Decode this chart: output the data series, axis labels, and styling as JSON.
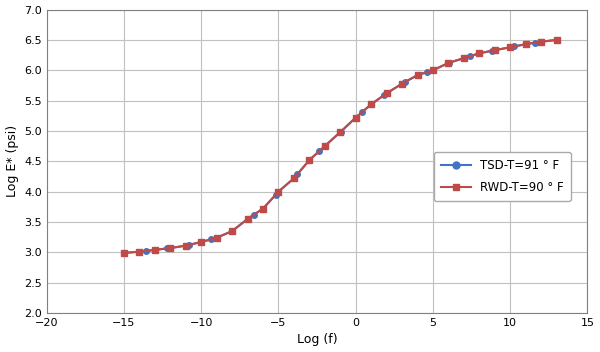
{
  "title": "",
  "xlabel": "Log (f)",
  "ylabel": "Log E* (psi)",
  "xlim": [
    -20,
    15
  ],
  "ylim": [
    2,
    7
  ],
  "xticks": [
    -20,
    -15,
    -10,
    -5,
    0,
    5,
    10,
    15
  ],
  "yticks": [
    2,
    2.5,
    3,
    3.5,
    4,
    4.5,
    5,
    5.5,
    6,
    6.5,
    7
  ],
  "tsd_color": "#4472C4",
  "rwd_color": "#BE4B48",
  "background_color": "#FFFFFF",
  "plot_bg_color": "#FFFFFF",
  "grid_color": "#C0C0C0",
  "legend_tsd": "TSD-T=91 ° F",
  "legend_rwd": "RWD-T=90 ° F",
  "x_data": [
    -15,
    -14,
    -13,
    -12,
    -11,
    -10,
    -9,
    -8,
    -7,
    -6,
    -5,
    -4,
    -3,
    -2,
    -1,
    0,
    1,
    2,
    3,
    4,
    5,
    6,
    7,
    8,
    9,
    10,
    11,
    12,
    13
  ],
  "y_data": [
    2.99,
    3.01,
    3.04,
    3.07,
    3.11,
    3.17,
    3.24,
    3.35,
    3.55,
    3.72,
    4.0,
    4.22,
    4.52,
    4.75,
    4.98,
    5.22,
    5.44,
    5.62,
    5.78,
    5.92,
    6.0,
    6.12,
    6.2,
    6.28,
    6.33,
    6.38,
    6.43,
    6.47,
    6.5
  ]
}
